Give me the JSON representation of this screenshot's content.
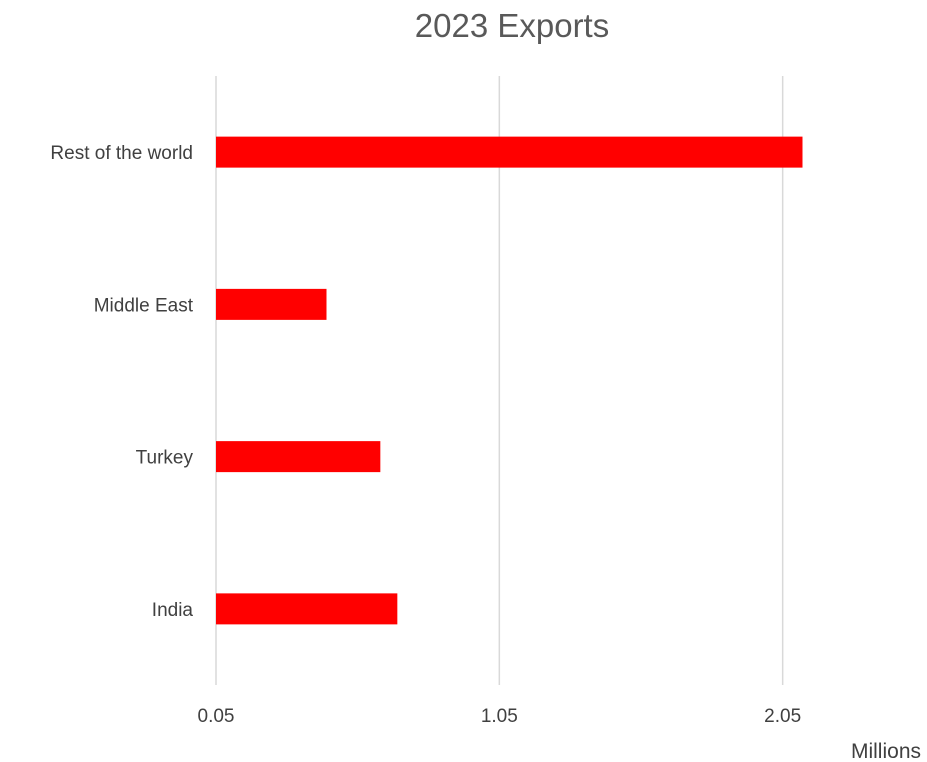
{
  "chart_data": {
    "type": "bar",
    "orientation": "horizontal",
    "title": "2023 Exports",
    "xlabel": "",
    "ylabel": "",
    "unit_label": "Millions",
    "categories": [
      "Rest of the world",
      "Middle East",
      "Turkey",
      "India"
    ],
    "values": [
      2.12,
      0.44,
      0.63,
      0.69
    ],
    "xlim": [
      0.05,
      2.45
    ],
    "ticks": [
      0.05,
      1.05,
      2.05
    ],
    "tick_labels": [
      "0.05",
      "1.05",
      "2.05"
    ],
    "grid": true,
    "legend": "none",
    "bar_color": "#ff0000",
    "grid_color": "#d9d9d9"
  }
}
